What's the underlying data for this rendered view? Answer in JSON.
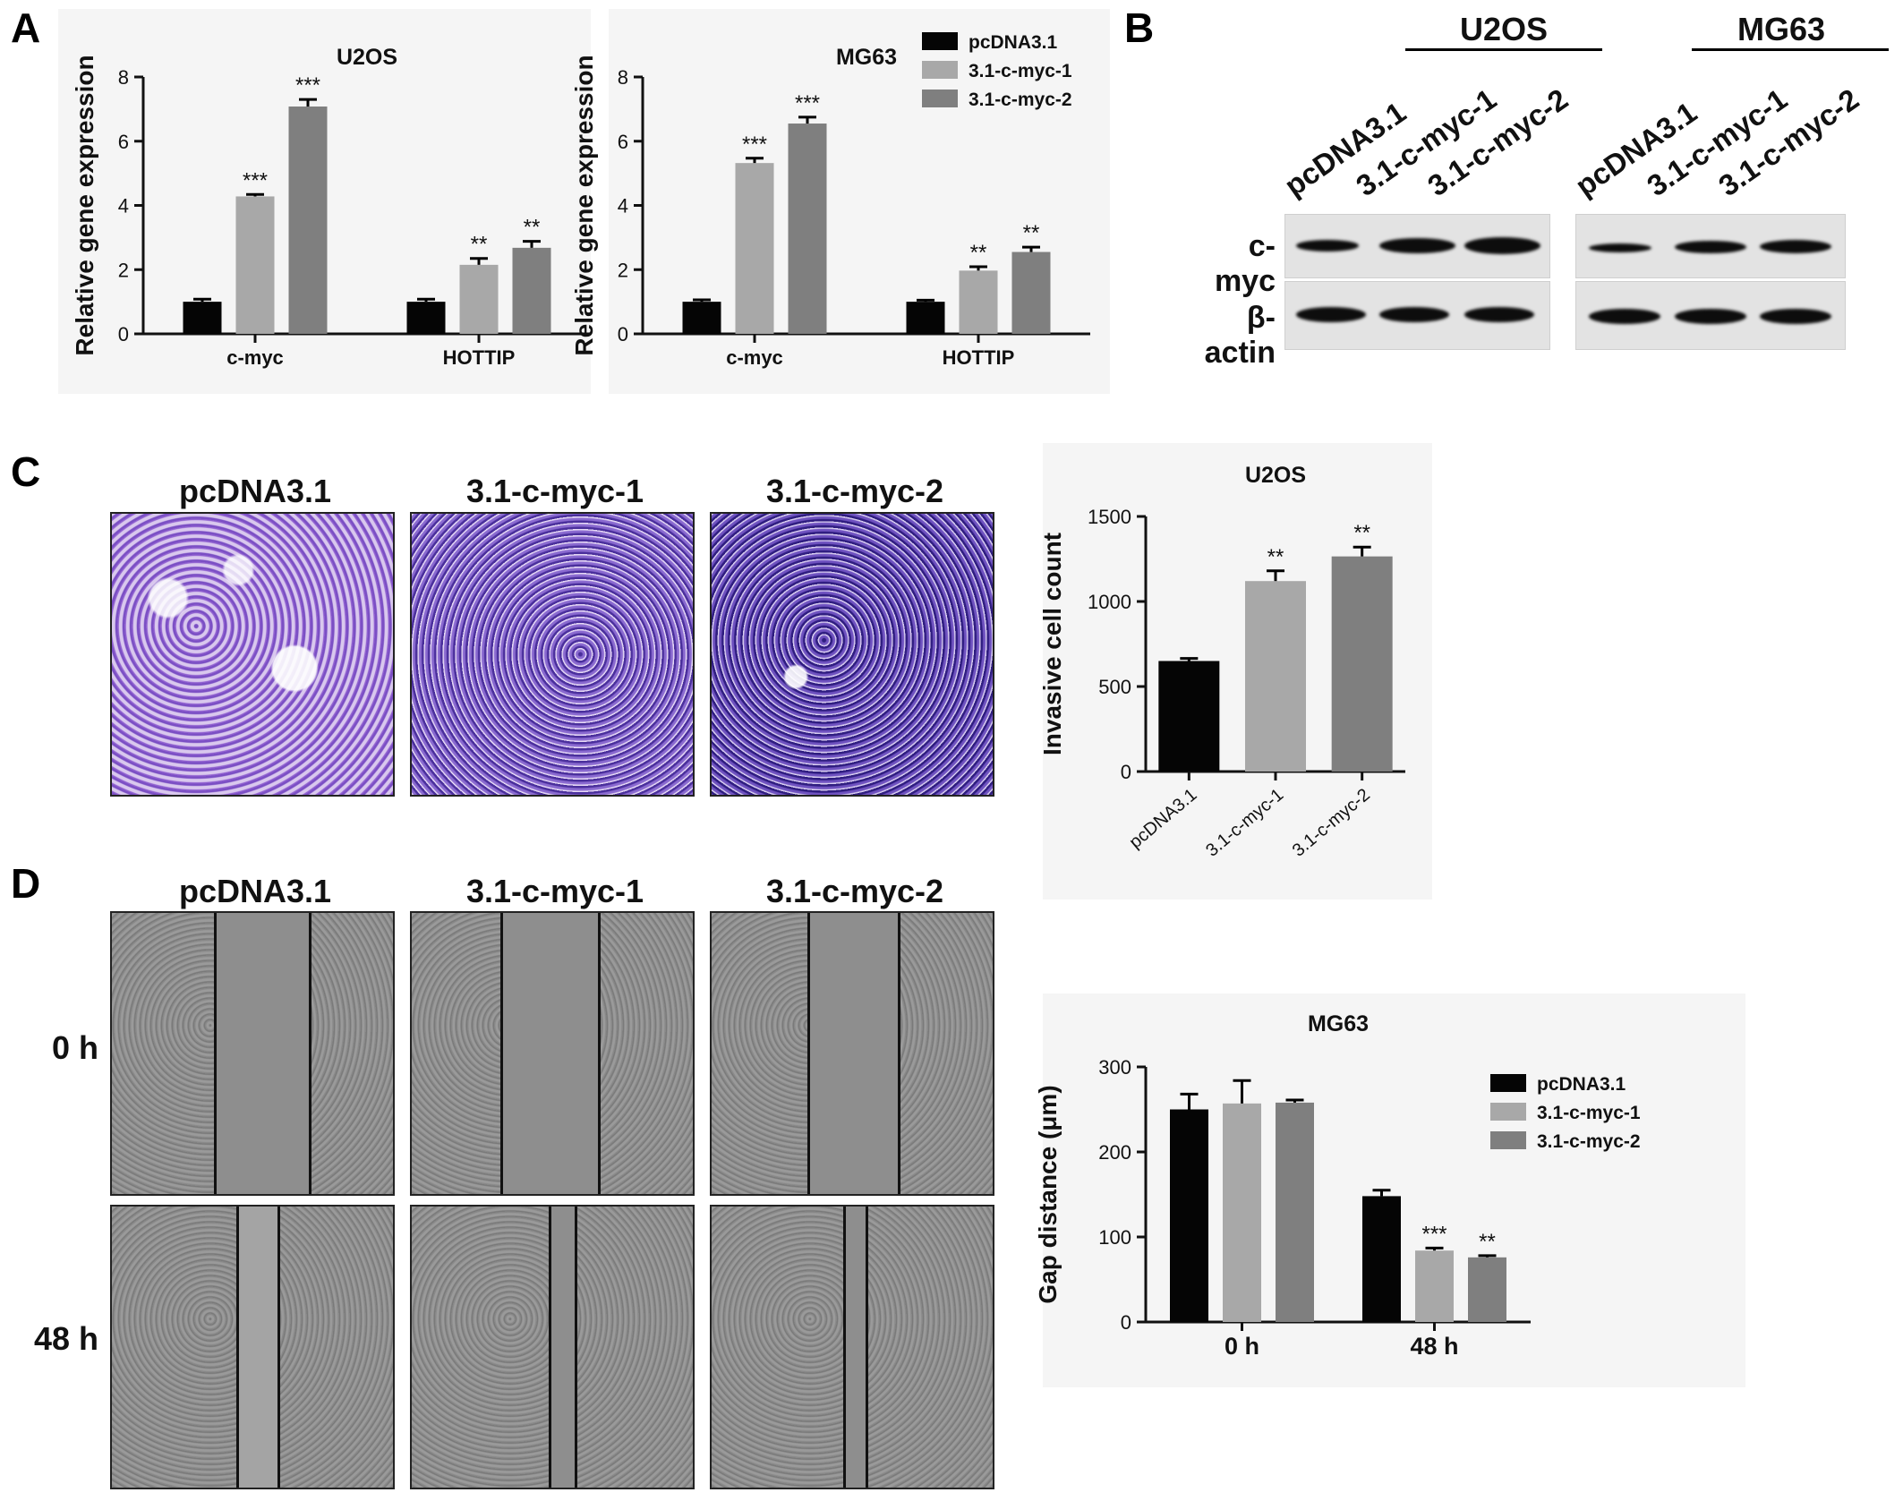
{
  "panels": {
    "a": "A",
    "b": "B",
    "c": "C",
    "d": "D"
  },
  "colors": {
    "pcdna": "#050505",
    "myc1": "#a8a8a8",
    "myc2": "#7f7f7f",
    "axis": "#111111"
  },
  "legend_a": [
    "pcDNA3.1",
    "3.1-c-myc-1",
    "3.1-c-myc-2"
  ],
  "legend_d": [
    "pcDNA3.1",
    "3.1-c-myc-1",
    "3.1-c-myc-2"
  ],
  "blot": {
    "cell_u2os": "U2OS",
    "cell_mg63": "MG63",
    "lanes": [
      "pcDNA3.1",
      "3.1-c-myc-1",
      "3.1-c-myc-2",
      "pcDNA3.1",
      "3.1-c-myc-1",
      "3.1-c-myc-2"
    ],
    "row_cmyc": "c-myc",
    "row_actin": "β-actin"
  },
  "invasion_columns": [
    "pcDNA3.1",
    "3.1-c-myc-1",
    "3.1-c-myc-2"
  ],
  "wound_columns": [
    "pcDNA3.1",
    "3.1-c-myc-1",
    "3.1-c-myc-2"
  ],
  "wound_rows": [
    "0 h",
    "48 h"
  ],
  "chart_data": [
    {
      "type": "bar",
      "title": "U2OS",
      "ylabel": "Relative gene expression",
      "categories": [
        "c-myc",
        "HOTTIP"
      ],
      "series": [
        {
          "name": "pcDNA3.1",
          "values": [
            1.0,
            1.0
          ],
          "errors": [
            0.08,
            0.08
          ],
          "sig": [
            "",
            ""
          ]
        },
        {
          "name": "3.1-c-myc-1",
          "values": [
            4.28,
            2.15
          ],
          "errors": [
            0.06,
            0.2
          ],
          "sig": [
            "***",
            "**"
          ]
        },
        {
          "name": "3.1-c-myc-2",
          "values": [
            7.08,
            2.68
          ],
          "errors": [
            0.22,
            0.2
          ],
          "sig": [
            "***",
            "**"
          ]
        }
      ],
      "ylim": [
        0,
        8
      ],
      "yticks": [
        0,
        2,
        4,
        6,
        8
      ]
    },
    {
      "type": "bar",
      "title": "MG63",
      "ylabel": "Relative gene expression",
      "categories": [
        "c-myc",
        "HOTTIP"
      ],
      "series": [
        {
          "name": "pcDNA3.1",
          "values": [
            1.0,
            1.0
          ],
          "errors": [
            0.06,
            0.05
          ],
          "sig": [
            "",
            ""
          ]
        },
        {
          "name": "3.1-c-myc-1",
          "values": [
            5.32,
            1.97
          ],
          "errors": [
            0.15,
            0.12
          ],
          "sig": [
            "***",
            "**"
          ]
        },
        {
          "name": "3.1-c-myc-2",
          "values": [
            6.55,
            2.55
          ],
          "errors": [
            0.2,
            0.15
          ],
          "sig": [
            "***",
            "**"
          ]
        }
      ],
      "ylim": [
        0,
        8
      ],
      "yticks": [
        0,
        2,
        4,
        6,
        8
      ]
    },
    {
      "type": "bar",
      "title": "U2OS",
      "ylabel": "Invasive cell count",
      "categories": [
        "pcDNA3.1",
        "3.1-c-myc-1",
        "3.1-c-myc-2"
      ],
      "values": [
        650,
        1120,
        1265
      ],
      "errors": [
        15,
        60,
        55
      ],
      "sig": [
        "",
        "**",
        "**"
      ],
      "ylim": [
        0,
        1500
      ],
      "yticks": [
        0,
        500,
        1000,
        1500
      ]
    },
    {
      "type": "bar",
      "title": "MG63",
      "ylabel": "Gap distance (μm)",
      "categories": [
        "0 h",
        "48 h"
      ],
      "series": [
        {
          "name": "pcDNA3.1",
          "values": [
            250,
            148
          ],
          "errors": [
            18,
            7
          ],
          "sig": [
            "",
            ""
          ]
        },
        {
          "name": "3.1-c-myc-1",
          "values": [
            257,
            84
          ],
          "errors": [
            27,
            3
          ],
          "sig": [
            "",
            "***"
          ]
        },
        {
          "name": "3.1-c-myc-2",
          "values": [
            258,
            76
          ],
          "errors": [
            3,
            2
          ],
          "sig": [
            "",
            "**"
          ]
        }
      ],
      "ylim": [
        0,
        300
      ],
      "yticks": [
        0,
        100,
        200,
        300
      ]
    }
  ]
}
